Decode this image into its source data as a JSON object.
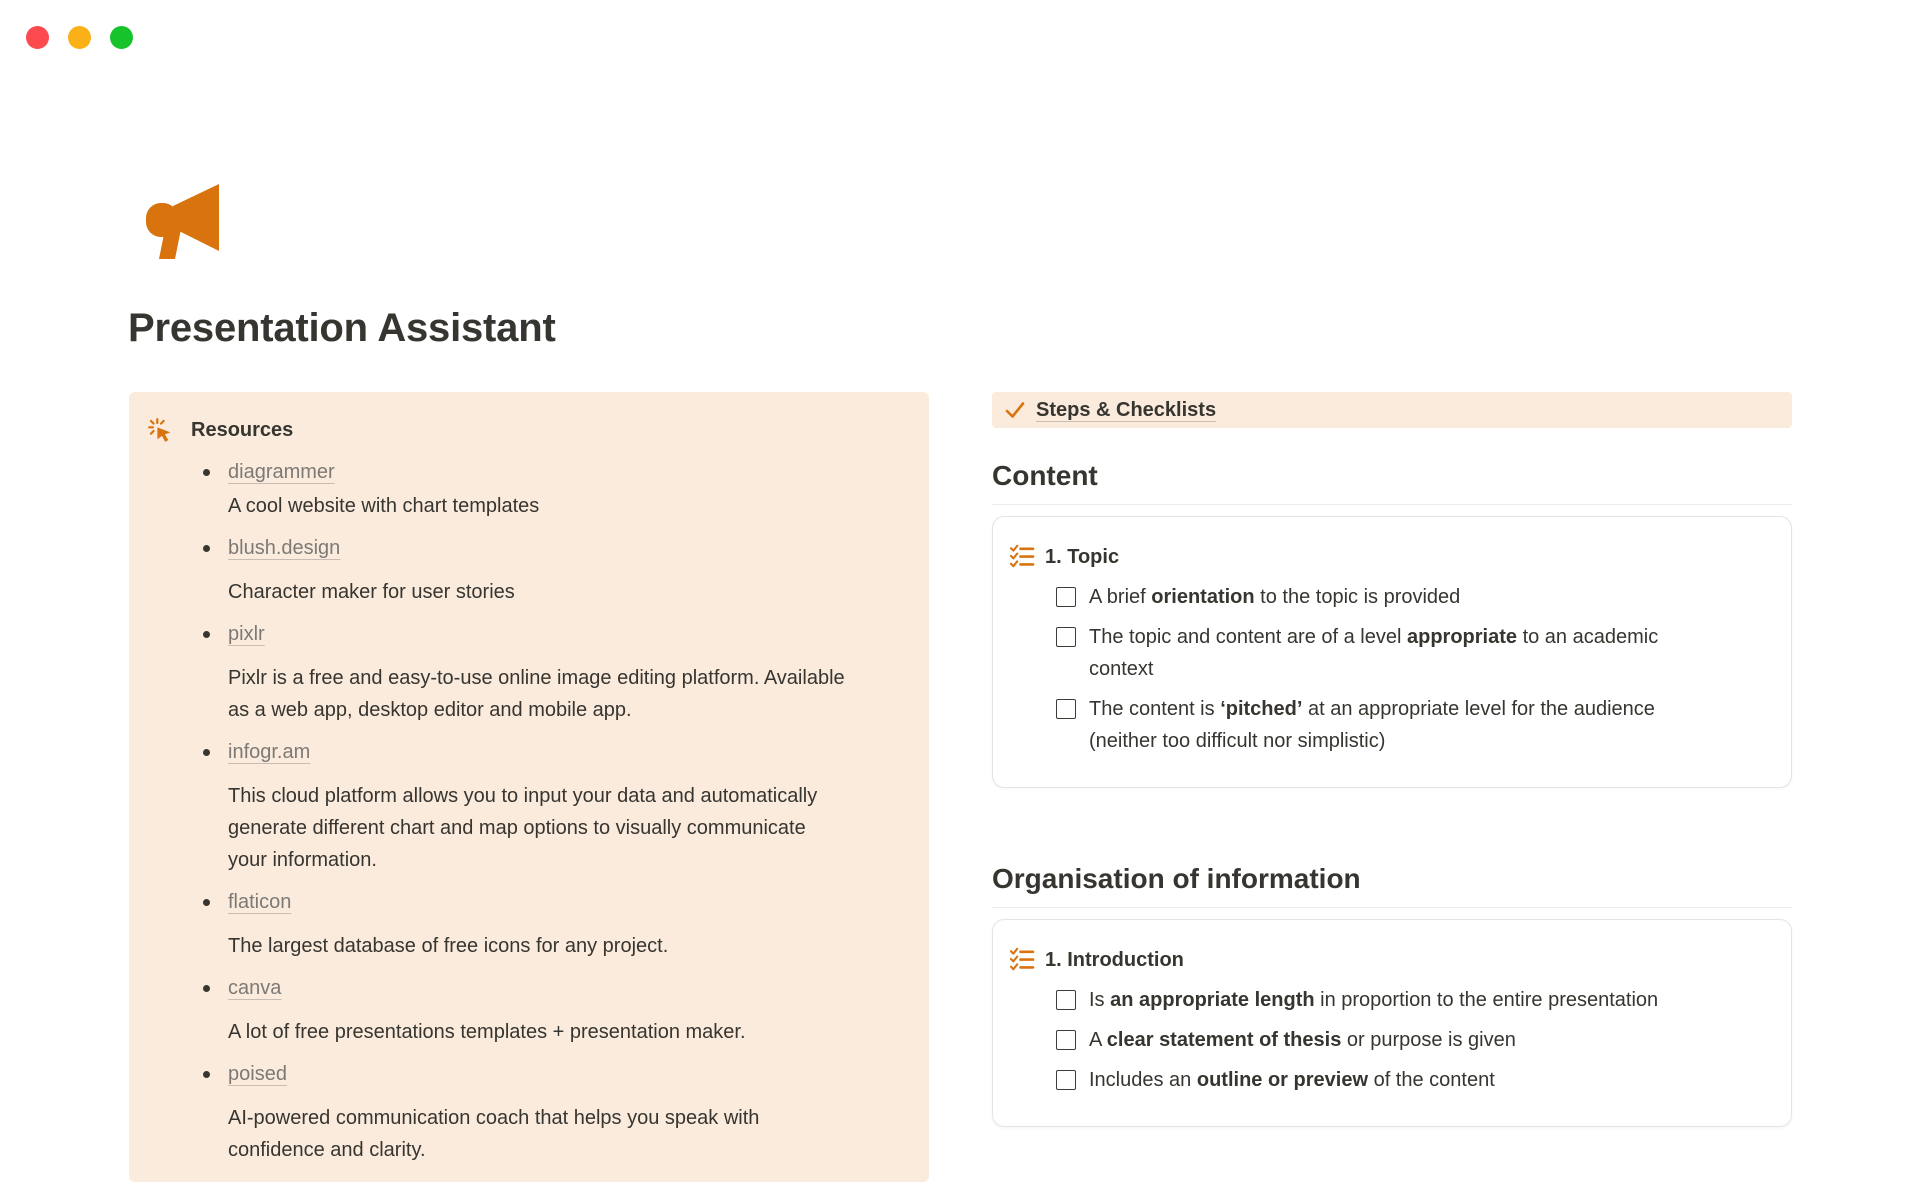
{
  "window": {
    "controls": [
      {
        "name": "close",
        "color": "#fc4a4f"
      },
      {
        "name": "minimize",
        "color": "#fcb017"
      },
      {
        "name": "zoom",
        "color": "#16c32b"
      }
    ]
  },
  "page": {
    "icon": "megaphone-icon",
    "title": "Presentation Assistant",
    "colors": {
      "accent_orange": "#d9730d",
      "callout_background": "#faebdd",
      "text": "#37352f",
      "link": "#7d7a75",
      "card_border": "#e6e4e0",
      "divider": "#ebeae8"
    }
  },
  "resources": {
    "icon": "click-icon",
    "title": "Resources",
    "items": [
      {
        "link": "diagrammer",
        "desc": "A cool website with chart templates",
        "tight": true
      },
      {
        "link": "blush.design",
        "desc": "Character maker for user stories"
      },
      {
        "link": "pixlr",
        "desc": "Pixlr is a free and easy-to-use online image editing platform. Available\nas a web app, desktop editor and mobile app."
      },
      {
        "link": "infogr.am",
        "desc": "This cloud platform allows you to input your data and automatically\ngenerate different chart and map options to visually communicate\nyour information."
      },
      {
        "link": "flaticon",
        "desc": "The largest database of free icons for any project."
      },
      {
        "link": "canva",
        "desc": "A lot of free presentations templates + presentation maker."
      },
      {
        "link": "poised",
        "desc": "AI-powered communication coach that helps you speak with\nconfidence and clarity."
      }
    ]
  },
  "right": {
    "banner": {
      "icon": "check-icon",
      "label": "Steps & Checklists"
    },
    "sections": [
      {
        "heading": "Content",
        "card": {
          "icon": "checklist-icon",
          "title": "1. Topic",
          "items": [
            {
              "checked": false,
              "segments": [
                {
                  "t": "A brief "
                },
                {
                  "t": "orientation",
                  "b": true
                },
                {
                  "t": " to the topic is provided"
                }
              ]
            },
            {
              "checked": false,
              "segments": [
                {
                  "t": "The topic and content are of a level "
                },
                {
                  "t": "appropriate",
                  "b": true
                },
                {
                  "t": " to an academic\ncontext"
                }
              ]
            },
            {
              "checked": false,
              "segments": [
                {
                  "t": "The content is "
                },
                {
                  "t": "‘pitched’",
                  "b": true
                },
                {
                  "t": " at an appropriate level for the audience\n(neither too difficult nor simplistic)"
                }
              ]
            }
          ]
        }
      },
      {
        "heading": "Organisation of information",
        "card": {
          "icon": "checklist-icon",
          "title": "1. Introduction",
          "items": [
            {
              "checked": false,
              "segments": [
                {
                  "t": "Is "
                },
                {
                  "t": "an appropriate length",
                  "b": true
                },
                {
                  "t": " in proportion to the entire presentation"
                }
              ]
            },
            {
              "checked": false,
              "segments": [
                {
                  "t": "A "
                },
                {
                  "t": "clear statement of thesis",
                  "b": true
                },
                {
                  "t": " or purpose is given"
                }
              ]
            },
            {
              "checked": false,
              "segments": [
                {
                  "t": "Includes an "
                },
                {
                  "t": "outline or preview",
                  "b": true
                },
                {
                  "t": " of the content"
                }
              ]
            }
          ]
        }
      }
    ]
  }
}
